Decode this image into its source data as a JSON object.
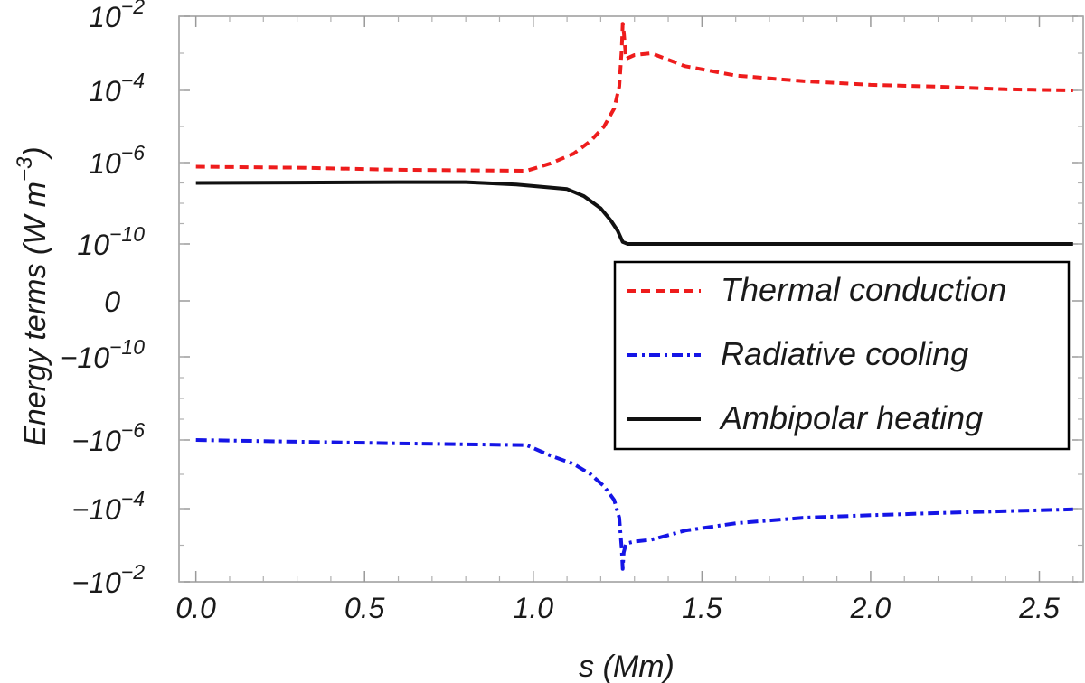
{
  "chart_data": {
    "type": "line",
    "title": "",
    "xlabel": "s (Mm)",
    "ylabel": "Energy terms (W m^-3)",
    "ylabel_parts": {
      "main": "Energy terms (W m",
      "exp": "−3",
      "close": ")"
    },
    "xlim": [
      -0.05,
      2.63
    ],
    "x_ticks": [
      0.0,
      0.5,
      1.0,
      1.5,
      2.0,
      2.5
    ],
    "x_tick_labels": [
      "0.0",
      "0.5",
      "1.0",
      "1.5",
      "2.0",
      "2.5"
    ],
    "y_scale": "symmetric-log",
    "y_ticks": [
      {
        "level": "p2",
        "base": "10",
        "exp": "−2"
      },
      {
        "level": "p4",
        "base": "10",
        "exp": "−4"
      },
      {
        "level": "p6",
        "base": "10",
        "exp": "−6"
      },
      {
        "level": "p10",
        "base": "10",
        "exp": "−10"
      },
      {
        "level": "zero",
        "base": "0",
        "exp": ""
      },
      {
        "level": "n10",
        "base": "−10",
        "exp": "−10"
      },
      {
        "level": "n6",
        "base": "−10",
        "exp": "−6"
      },
      {
        "level": "n4",
        "base": "−10",
        "exp": "−4"
      },
      {
        "level": "n2",
        "base": "−10",
        "exp": "−2"
      }
    ],
    "series": [
      {
        "name": "Thermal conduction",
        "color": "#ee1c1c",
        "style": "dashed",
        "x": [
          0.0,
          0.3,
          0.6,
          0.98,
          1.05,
          1.12,
          1.17,
          1.21,
          1.24,
          1.255,
          1.262,
          1.265,
          1.268,
          1.275,
          1.3,
          1.35,
          1.45,
          1.6,
          1.8,
          2.0,
          2.2,
          2.4,
          2.6
        ],
        "y_log10": [
          -6.2,
          -6.25,
          -6.35,
          -6.4,
          -6.05,
          -5.75,
          -5.4,
          -5.0,
          -4.5,
          -3.9,
          -2.9,
          -2.2,
          -2.4,
          -3.15,
          -3.05,
          -3.0,
          -3.35,
          -3.6,
          -3.75,
          -3.85,
          -3.9,
          -3.97,
          -4.0
        ]
      },
      {
        "name": "Radiative cooling",
        "color": "#1515e6",
        "style": "dashdot",
        "x": [
          0.0,
          0.3,
          0.6,
          0.98,
          1.05,
          1.12,
          1.17,
          1.21,
          1.24,
          1.255,
          1.262,
          1.265,
          1.268,
          1.275,
          1.3,
          1.35,
          1.45,
          1.6,
          1.8,
          2.0,
          2.2,
          2.4,
          2.6
        ],
        "y_log10": [
          -6.0,
          -5.95,
          -5.9,
          -5.85,
          -5.55,
          -5.3,
          -5.0,
          -4.65,
          -4.25,
          -3.75,
          -2.9,
          -2.35,
          -2.8,
          -3.05,
          -3.1,
          -3.15,
          -3.4,
          -3.6,
          -3.75,
          -3.82,
          -3.88,
          -3.93,
          -3.98
        ],
        "sign": -1
      },
      {
        "name": "Ambipolar heating",
        "color": "#111111",
        "style": "solid",
        "x": [
          0.0,
          0.3,
          0.6,
          0.8,
          0.95,
          1.1,
          1.15,
          1.2,
          1.23,
          1.25,
          1.265,
          1.28,
          1.5,
          2.0,
          2.6
        ],
        "y_log10": [
          -7.0,
          -6.98,
          -6.96,
          -6.96,
          -7.08,
          -7.3,
          -7.65,
          -8.25,
          -8.85,
          -9.35,
          -9.9,
          -10.0,
          -10.0,
          -10.0,
          -10.0
        ]
      }
    ],
    "legend_position": "right"
  }
}
